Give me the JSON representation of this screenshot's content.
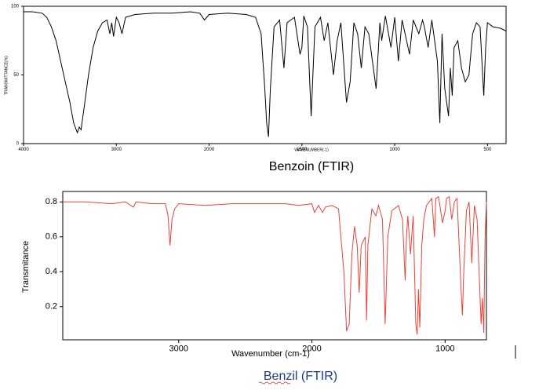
{
  "chart_data": [
    {
      "type": "line",
      "caption": "Benzoin (FTIR)",
      "x_label": "WAVENUMBER(-1)",
      "y_label": "TRANSMITTANCE(%)",
      "x_scale": "piecewise",
      "xlim": [
        4000,
        400
      ],
      "xticks": [
        4000,
        3000,
        2000,
        1500,
        1000,
        500
      ],
      "ylim": [
        0,
        100
      ],
      "yticks": [
        0,
        50,
        100
      ],
      "series": [
        {
          "name": "Benzoin",
          "color": "#000000",
          "x": [
            4000,
            3900,
            3800,
            3750,
            3700,
            3650,
            3600,
            3550,
            3500,
            3460,
            3420,
            3400,
            3380,
            3350,
            3300,
            3250,
            3200,
            3150,
            3100,
            3070,
            3050,
            3030,
            3000,
            2970,
            2940,
            2900,
            2800,
            2600,
            2400,
            2200,
            2100,
            2050,
            2000,
            1900,
            1800,
            1750,
            1720,
            1700,
            1690,
            1680,
            1670,
            1650,
            1620,
            1597,
            1580,
            1560,
            1540,
            1510,
            1500,
            1490,
            1470,
            1450,
            1430,
            1400,
            1380,
            1360,
            1330,
            1310,
            1290,
            1260,
            1240,
            1220,
            1200,
            1180,
            1160,
            1140,
            1100,
            1080,
            1070,
            1050,
            1020,
            1000,
            980,
            960,
            920,
            900,
            870,
            850,
            840,
            820,
            800,
            770,
            757,
            745,
            730,
            710,
            700,
            690,
            680,
            660,
            640,
            620,
            600,
            580,
            560,
            540,
            520,
            510,
            500,
            470,
            430,
            400
          ],
          "values": [
            96,
            96,
            95,
            92,
            85,
            75,
            60,
            45,
            30,
            15,
            8,
            12,
            10,
            25,
            50,
            70,
            82,
            88,
            90,
            80,
            88,
            78,
            92,
            88,
            80,
            92,
            94,
            95,
            95,
            96,
            95,
            90,
            94,
            95,
            94,
            92,
            80,
            40,
            15,
            5,
            40,
            85,
            90,
            55,
            88,
            90,
            92,
            65,
            70,
            93,
            85,
            20,
            85,
            92,
            75,
            88,
            50,
            75,
            88,
            30,
            45,
            88,
            80,
            55,
            85,
            80,
            40,
            88,
            75,
            93,
            70,
            92,
            60,
            90,
            65,
            90,
            80,
            90,
            85,
            70,
            90,
            60,
            15,
            80,
            40,
            20,
            55,
            35,
            70,
            75,
            55,
            45,
            50,
            80,
            88,
            85,
            35,
            70,
            88,
            85,
            84,
            82
          ]
        }
      ]
    },
    {
      "type": "line",
      "caption": "Benzil (FTIR)",
      "x_label": "Wavenumber (cm-1)",
      "y_label": "Transmitance",
      "xlim": [
        3870,
        690
      ],
      "xticks": [
        3000,
        2000,
        1000
      ],
      "ylim": [
        0.01,
        0.86
      ],
      "yticks": [
        0.2,
        0.4,
        0.6,
        0.8
      ],
      "series": [
        {
          "name": "Benzil",
          "color": "#e8433a",
          "x": [
            3870,
            3700,
            3500,
            3400,
            3340,
            3320,
            3200,
            3100,
            3080,
            3065,
            3050,
            3030,
            3000,
            2800,
            2600,
            2400,
            2200,
            2100,
            2000,
            1980,
            1950,
            1920,
            1900,
            1850,
            1800,
            1760,
            1740,
            1720,
            1700,
            1680,
            1660,
            1645,
            1630,
            1600,
            1590,
            1580,
            1550,
            1520,
            1500,
            1470,
            1450,
            1430,
            1400,
            1350,
            1320,
            1300,
            1290,
            1280,
            1260,
            1240,
            1220,
            1210,
            1200,
            1190,
            1175,
            1160,
            1140,
            1100,
            1080,
            1070,
            1050,
            1020,
            1000,
            990,
            970,
            950,
            930,
            910,
            880,
            870,
            860,
            840,
            820,
            800,
            780,
            760,
            730,
            720,
            710,
            700,
            690
          ],
          "values": [
            0.8,
            0.8,
            0.79,
            0.8,
            0.77,
            0.8,
            0.79,
            0.79,
            0.72,
            0.55,
            0.7,
            0.76,
            0.79,
            0.78,
            0.79,
            0.79,
            0.79,
            0.78,
            0.79,
            0.74,
            0.78,
            0.74,
            0.77,
            0.78,
            0.76,
            0.4,
            0.06,
            0.1,
            0.5,
            0.66,
            0.55,
            0.28,
            0.55,
            0.6,
            0.12,
            0.55,
            0.76,
            0.72,
            0.78,
            0.7,
            0.1,
            0.6,
            0.75,
            0.78,
            0.7,
            0.35,
            0.6,
            0.72,
            0.5,
            0.72,
            0.1,
            0.04,
            0.3,
            0.08,
            0.55,
            0.7,
            0.78,
            0.82,
            0.6,
            0.82,
            0.83,
            0.68,
            0.75,
            0.82,
            0.83,
            0.7,
            0.8,
            0.82,
            0.3,
            0.15,
            0.4,
            0.75,
            0.8,
            0.45,
            0.78,
            0.7,
            0.1,
            0.25,
            0.05,
            0.6,
            0.8
          ]
        }
      ]
    }
  ]
}
